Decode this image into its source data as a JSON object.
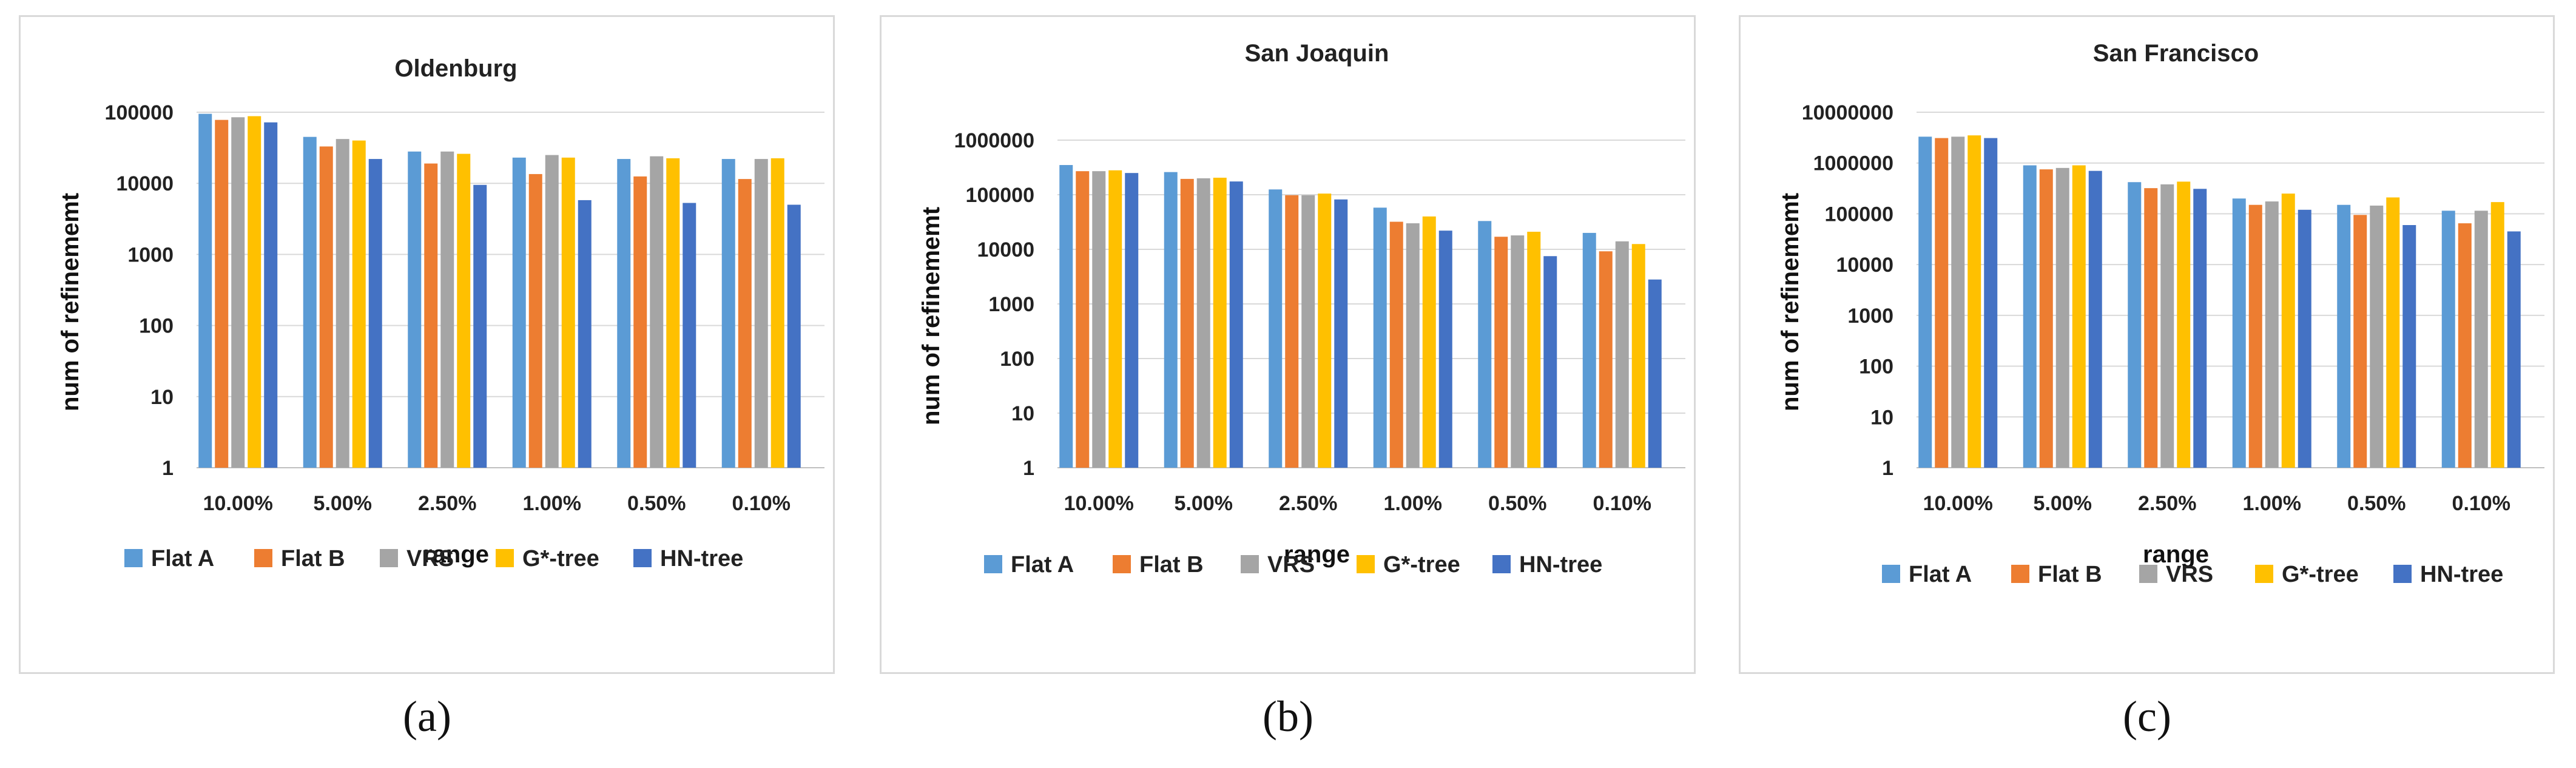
{
  "colors": {
    "flat_a": "#5b9bd5",
    "flat_b": "#ed7d31",
    "vrs": "#a5a5a5",
    "gstar": "#ffc000",
    "hn": "#4472c4",
    "grid": "#d9d9d9"
  },
  "chart_data": [
    {
      "type": "bar",
      "title": "Oldenburg",
      "xlabel": "range",
      "ylabel": "num of refinememt",
      "yscale": "log",
      "ylim": [
        1,
        100000
      ],
      "yticks": [
        "1",
        "10",
        "100",
        "1000",
        "10000",
        "100000"
      ],
      "categories": [
        "10.00%",
        "5.00%",
        "2.50%",
        "1.00%",
        "0.50%",
        "0.10%"
      ],
      "series": [
        {
          "name": "Flat A",
          "values": [
            95000,
            45000,
            28000,
            23000,
            22000,
            22000
          ]
        },
        {
          "name": "Flat B",
          "values": [
            78000,
            33000,
            19000,
            13500,
            12500,
            11500
          ]
        },
        {
          "name": "VRS",
          "values": [
            85000,
            42000,
            28000,
            25000,
            24000,
            22000
          ]
        },
        {
          "name": "G*-tree",
          "values": [
            88000,
            40000,
            26000,
            23000,
            22500,
            22500
          ]
        },
        {
          "name": "HN-tree",
          "values": [
            72000,
            22000,
            9500,
            5800,
            5300,
            5000
          ]
        }
      ],
      "subfigure_label": "(a)"
    },
    {
      "type": "bar",
      "title": "San Joaquin",
      "xlabel": "range",
      "ylabel": "num of refinememt",
      "yscale": "log",
      "ylim": [
        1,
        1000000
      ],
      "yticks": [
        "1",
        "10",
        "100",
        "1000",
        "10000",
        "100000",
        "1000000"
      ],
      "categories": [
        "10.00%",
        "5.00%",
        "2.50%",
        "1.00%",
        "0.50%",
        "0.10%"
      ],
      "series": [
        {
          "name": "Flat A",
          "values": [
            350000,
            260000,
            125000,
            58000,
            33000,
            20000
          ]
        },
        {
          "name": "Flat B",
          "values": [
            270000,
            195000,
            98000,
            32000,
            17000,
            9200
          ]
        },
        {
          "name": "VRS",
          "values": [
            270000,
            200000,
            98000,
            30000,
            18000,
            14000
          ]
        },
        {
          "name": "G*-tree",
          "values": [
            280000,
            205000,
            105000,
            40000,
            21000,
            12500
          ]
        },
        {
          "name": "HN-tree",
          "values": [
            250000,
            175000,
            82000,
            22000,
            7500,
            2800
          ]
        }
      ],
      "subfigure_label": "(b)"
    },
    {
      "type": "bar",
      "title": "San Francisco",
      "xlabel": "range",
      "ylabel": "num of refinememt",
      "yscale": "log",
      "ylim": [
        1,
        10000000
      ],
      "yticks": [
        "1",
        "10",
        "100",
        "1000",
        "10000",
        "100000",
        "1000000",
        "10000000"
      ],
      "categories": [
        "10.00%",
        "5.00%",
        "2.50%",
        "1.00%",
        "0.50%",
        "0.10%"
      ],
      "series": [
        {
          "name": "Flat A",
          "values": [
            3300000,
            900000,
            420000,
            200000,
            150000,
            115000
          ]
        },
        {
          "name": "Flat B",
          "values": [
            3100000,
            750000,
            320000,
            150000,
            95000,
            65000
          ]
        },
        {
          "name": "VRS",
          "values": [
            3300000,
            800000,
            380000,
            175000,
            145000,
            115000
          ]
        },
        {
          "name": "G*-tree",
          "values": [
            3500000,
            900000,
            430000,
            250000,
            210000,
            170000
          ]
        },
        {
          "name": "HN-tree",
          "values": [
            3100000,
            700000,
            310000,
            120000,
            60000,
            45000
          ]
        }
      ],
      "subfigure_label": "(c)"
    }
  ]
}
